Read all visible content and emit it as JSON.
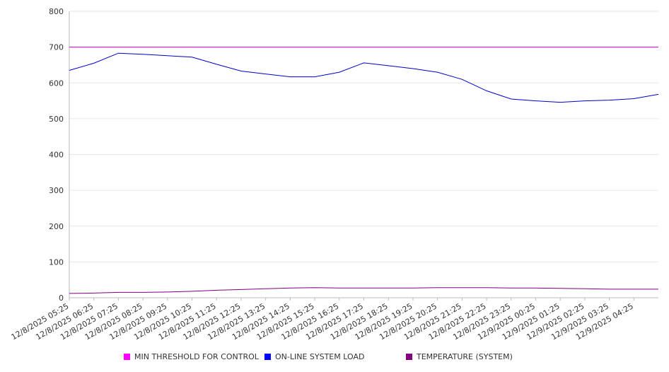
{
  "chart_data": {
    "type": "line",
    "ylim": [
      0,
      800
    ],
    "yticks": [
      0,
      100,
      200,
      300,
      400,
      500,
      600,
      700,
      800
    ],
    "grid": true,
    "legend_placement": "bottom",
    "x_tick_labels": [
      "12/8/2025 05:25",
      "12/8/2025 06:25",
      "12/8/2025 07:25",
      "12/8/2025 08:25",
      "12/8/2025 09:25",
      "12/8/2025 10:25",
      "12/8/2025 11:25",
      "12/8/2025 12:25",
      "12/8/2025 13:25",
      "12/8/2025 14:25",
      "12/8/2025 15:25",
      "12/8/2025 16:25",
      "12/8/2025 17:25",
      "12/8/2025 18:25",
      "12/8/2025 19:25",
      "12/8/2025 20:25",
      "12/8/2025 21:25",
      "12/8/2025 22:25",
      "12/8/2025 23:25",
      "12/9/2025 00:25",
      "12/9/2025 01:25",
      "12/9/2025 02:25",
      "12/9/2025 03:25",
      "12/9/2025 04:25"
    ],
    "x": [
      "12/8/2025 05:25",
      "12/8/2025 06:25",
      "12/8/2025 07:25",
      "12/8/2025 08:25",
      "12/8/2025 09:25",
      "12/8/2025 10:25",
      "12/8/2025 11:25",
      "12/8/2025 12:25",
      "12/8/2025 13:25",
      "12/8/2025 14:25",
      "12/8/2025 15:25",
      "12/8/2025 16:25",
      "12/8/2025 17:25",
      "12/8/2025 18:25",
      "12/8/2025 19:25",
      "12/8/2025 20:25",
      "12/8/2025 21:25",
      "12/8/2025 22:25",
      "12/8/2025 23:25",
      "12/9/2025 00:25",
      "12/9/2025 01:25",
      "12/9/2025 02:25",
      "12/9/2025 03:25",
      "12/9/2025 04:25",
      "12/9/2025 05:00"
    ],
    "series": [
      {
        "name": "MIN THRESHOLD FOR CONTROL",
        "color": "#cc00cc",
        "values": [
          700,
          700,
          700,
          700,
          700,
          700,
          700,
          700,
          700,
          700,
          700,
          700,
          700,
          700,
          700,
          700,
          700,
          700,
          700,
          700,
          700,
          700,
          700,
          700,
          700
        ]
      },
      {
        "name": "ON-LINE SYSTEM LOAD",
        "color": "#0000cc",
        "values": [
          635,
          655,
          683,
          680,
          676,
          672,
          652,
          633,
          625,
          617,
          617,
          630,
          656,
          648,
          640,
          630,
          610,
          578,
          555,
          550,
          546,
          550,
          552,
          556,
          568
        ]
      },
      {
        "name": "TEMPERATURE (SYSTEM)",
        "color": "#800080",
        "values": [
          12,
          13,
          15,
          15,
          16,
          18,
          21,
          23,
          25,
          27,
          28,
          27,
          27,
          27,
          27,
          28,
          28,
          28,
          27,
          27,
          26,
          25,
          24,
          24,
          24
        ]
      }
    ]
  }
}
